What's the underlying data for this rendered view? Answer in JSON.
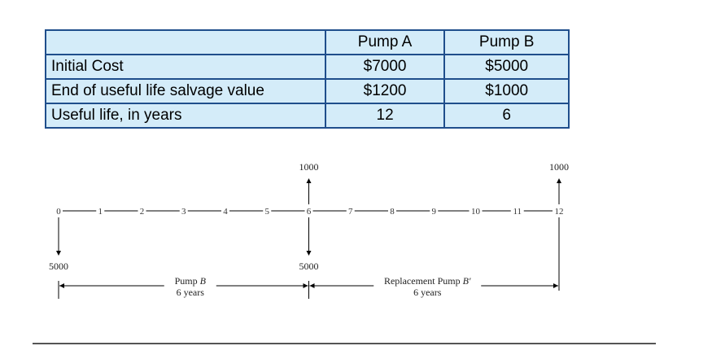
{
  "table": {
    "headers": [
      "",
      "Pump A",
      "Pump B"
    ],
    "rows": [
      {
        "label": "Initial Cost",
        "pump_a": "$7000",
        "pump_b": "$5000"
      },
      {
        "label": "End of useful life salvage value",
        "pump_a": "$1200",
        "pump_b": "$1000"
      },
      {
        "label": "Useful life, in years",
        "pump_a": "12",
        "pump_b": "6"
      }
    ]
  },
  "cash_flow": {
    "ticks": [
      "0",
      "1",
      "2",
      "3",
      "4",
      "5",
      "6",
      "7",
      "8",
      "9",
      "10",
      "11",
      "12"
    ],
    "arrows": [
      {
        "year": 0,
        "amount": "5000",
        "direction": "down"
      },
      {
        "year": 6,
        "amount": "1000",
        "direction": "up"
      },
      {
        "year": 6,
        "amount": "5000",
        "direction": "down"
      },
      {
        "year": 12,
        "amount": "1000",
        "direction": "up"
      }
    ],
    "spans": [
      {
        "from": 0,
        "to": 6,
        "label_name": "Pump ",
        "label_italic": "B",
        "label_sub": "6 years"
      },
      {
        "from": 6,
        "to": 12,
        "label_name": "Replacement Pump ",
        "label_italic": "B′",
        "label_sub": "6 years"
      }
    ]
  },
  "colors": {
    "table_fill": "#d4ecf9",
    "table_border": "#1f4e8c",
    "line": "#000000"
  }
}
